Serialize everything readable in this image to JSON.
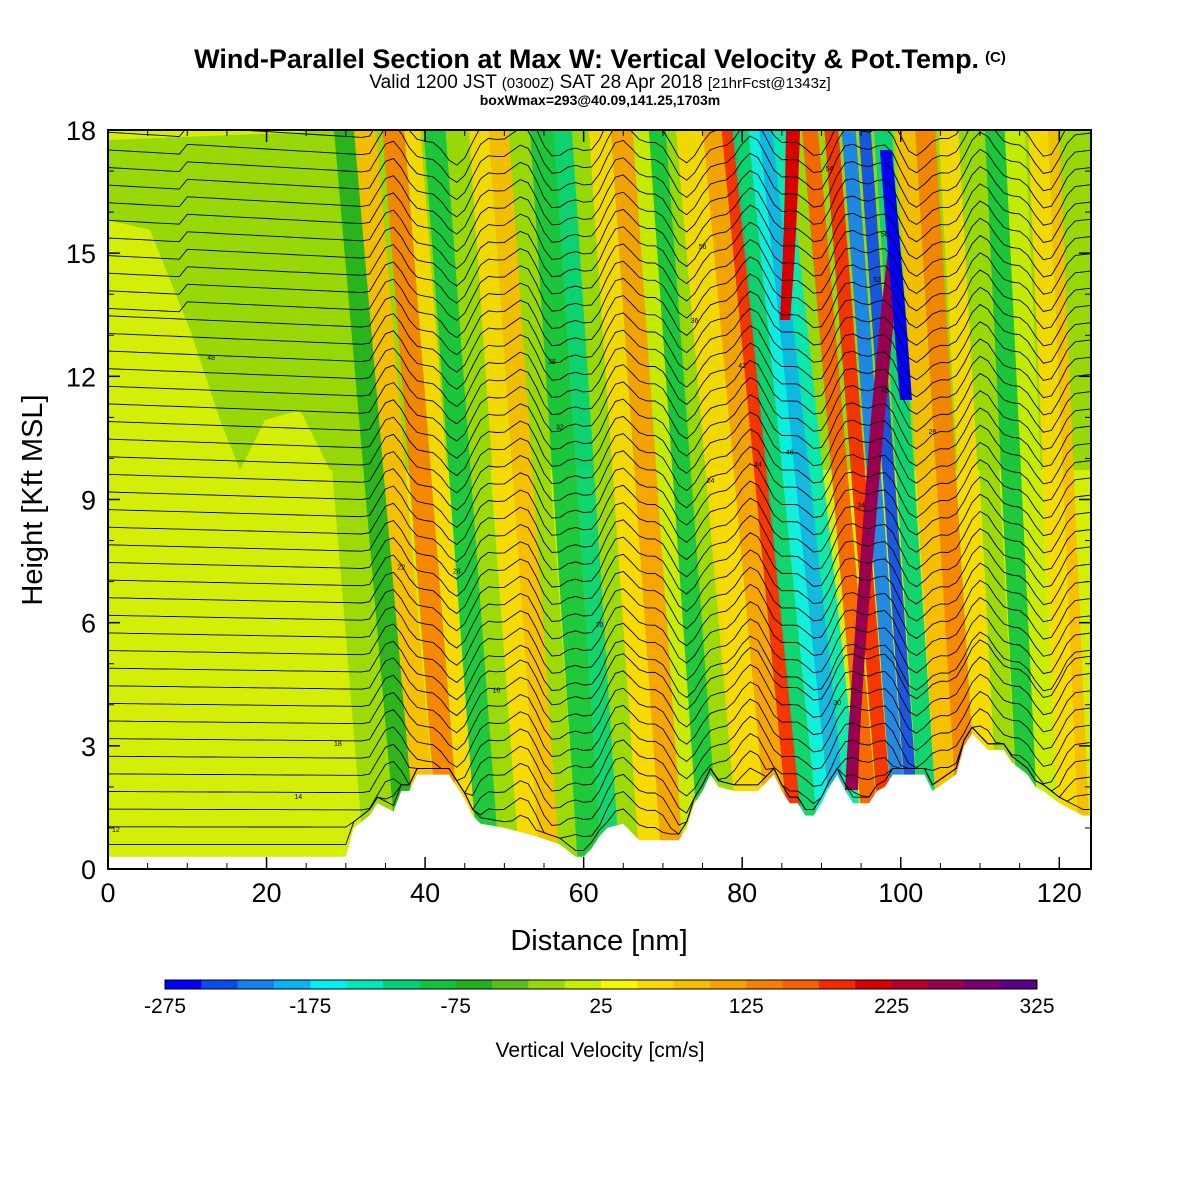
{
  "header": {
    "title": "Wind-Parallel Section at Max W: Vertical Velocity & Pot.Temp.",
    "copyright": "(C)",
    "valid_main": "Valid 1200 JST",
    "valid_utc": "(0300Z)",
    "valid_date": "SAT 28 Apr 2018",
    "forecast": "[21hrFcst@1343z]",
    "box_info": "boxWmax=293@40.09,141.25,1703m"
  },
  "chart_data": {
    "type": "heatmap",
    "xlabel": "Distance [nm]",
    "ylabel": "Height [Kft MSL]",
    "xlim": [
      0,
      124
    ],
    "ylim": [
      0,
      18
    ],
    "x_ticks": [
      0,
      20,
      40,
      60,
      80,
      100,
      120
    ],
    "y_ticks": [
      0,
      3,
      6,
      9,
      12,
      15,
      18
    ],
    "colorbar": {
      "label": "Vertical Velocity [cm/s]",
      "range": [
        -275,
        325
      ],
      "step": 25,
      "tick_labels": [
        "-275",
        "-175",
        "-75",
        "25",
        "125",
        "225",
        "325"
      ],
      "colors": [
        "#0000ff",
        "#0a4cf0",
        "#1480f4",
        "#05b4f0",
        "#00f0f0",
        "#00e8b8",
        "#00d278",
        "#10c440",
        "#20b020",
        "#58c018",
        "#98d808",
        "#c8ec00",
        "#f8f800",
        "#f8d800",
        "#f8bc00",
        "#f8a000",
        "#f88000",
        "#f86000",
        "#f82800",
        "#d80000",
        "#b80028",
        "#980050",
        "#780070",
        "#580088"
      ]
    },
    "terrain_kft": [
      [
        0,
        0.3
      ],
      [
        30,
        0.3
      ],
      [
        31,
        1.0
      ],
      [
        33,
        1.3
      ],
      [
        34,
        1.6
      ],
      [
        36,
        1.4
      ],
      [
        37,
        1.9
      ],
      [
        38,
        1.9
      ],
      [
        39,
        2.3
      ],
      [
        43,
        2.3
      ],
      [
        44,
        2.0
      ],
      [
        45,
        1.7
      ],
      [
        46,
        1.3
      ],
      [
        47,
        1.1
      ],
      [
        50,
        1.0
      ],
      [
        54,
        0.8
      ],
      [
        57,
        0.6
      ],
      [
        59,
        0.3
      ],
      [
        60,
        0.3
      ],
      [
        61,
        0.5
      ],
      [
        62,
        0.8
      ],
      [
        63,
        1.0
      ],
      [
        65,
        1.1
      ],
      [
        66,
        0.9
      ],
      [
        67,
        0.7
      ],
      [
        72,
        0.7
      ],
      [
        73,
        1.0
      ],
      [
        74,
        1.6
      ],
      [
        75,
        1.9
      ],
      [
        76,
        2.3
      ],
      [
        77,
        2.0
      ],
      [
        79,
        1.9
      ],
      [
        82,
        1.9
      ],
      [
        83,
        2.1
      ],
      [
        84,
        2.3
      ],
      [
        85,
        1.9
      ],
      [
        86,
        1.6
      ],
      [
        87,
        1.6
      ],
      [
        88,
        1.3
      ],
      [
        89,
        1.3
      ],
      [
        90,
        1.6
      ],
      [
        91,
        2.0
      ],
      [
        92,
        2.3
      ],
      [
        93,
        1.9
      ],
      [
        94,
        1.6
      ],
      [
        96,
        1.6
      ],
      [
        97,
        1.9
      ],
      [
        98,
        2.0
      ],
      [
        99,
        2.3
      ],
      [
        103,
        2.3
      ],
      [
        104,
        1.9
      ],
      [
        107,
        2.3
      ],
      [
        108,
        3.0
      ],
      [
        109,
        3.3
      ],
      [
        111,
        2.9
      ],
      [
        113,
        2.9
      ],
      [
        114,
        2.6
      ],
      [
        116,
        2.3
      ],
      [
        117,
        2.0
      ],
      [
        118,
        1.9
      ],
      [
        120,
        1.6
      ],
      [
        121,
        1.5
      ],
      [
        123,
        1.3
      ],
      [
        124,
        1.3
      ]
    ],
    "theta_contour_labels": [
      "12",
      "14",
      "16",
      "18",
      "20",
      "22",
      "24",
      "26",
      "28",
      "30",
      "32",
      "34",
      "36",
      "38",
      "40",
      "42",
      "44",
      "46",
      "48",
      "50",
      "52",
      "54",
      "56"
    ],
    "max_w_cms": 293
  }
}
